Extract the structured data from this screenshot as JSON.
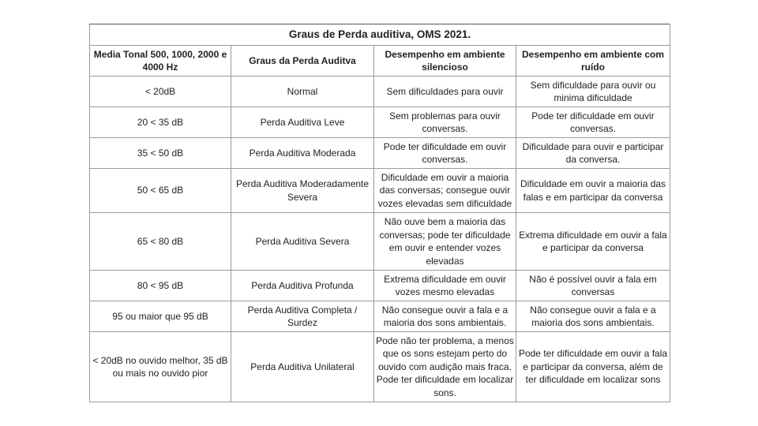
{
  "title": "Graus de Perda auditiva, OMS 2021.",
  "headers": [
    "Media Tonal 500, 1000, 2000 e 4000 Hz",
    "Graus da Perda Auditva",
    "Desempenho em ambiente silencioso",
    "Desempenho em ambiente com ruído"
  ],
  "rows": [
    [
      "< 20dB",
      "Normal",
      "Sem dificuldades para ouvir",
      "Sem dificuldade para ouvir ou minima dificuldade"
    ],
    [
      "20 < 35 dB",
      "Perda Auditiva Leve",
      "Sem problemas para ouvir conversas.",
      "Pode ter dificuldade em ouvir conversas."
    ],
    [
      "35 < 50 dB",
      "Perda Auditiva Moderada",
      "Pode ter dificuldade em ouvir conversas.",
      "Dificuldade para ouvir e participar da conversa."
    ],
    [
      "50 < 65 dB",
      "Perda Auditiva Moderadamente Severa",
      "Dificuldade em ouvir a maioria das conversas; consegue ouvir vozes elevadas sem dificuldade",
      "Dificuldade em ouvir a maioria das falas e em participar da conversa"
    ],
    [
      "65 < 80 dB",
      "Perda Auditiva Severa",
      "Não ouve bem a maioria das conversas; pode ter dificuldade em ouvir e entender vozes elevadas",
      "Extrema dificuldade em ouvir a fala e participar da conversa"
    ],
    [
      "80 < 95 dB",
      "Perda Auditiva Profunda",
      "Extrema dificuldade em ouvir vozes mesmo elevadas",
      "Não é possível ouvir a fala em conversas"
    ],
    [
      "95 ou maior que 95 dB",
      "Perda Auditiva Completa / Surdez",
      "Não consegue ouvir a fala e a maioria dos sons ambientais.",
      "Não consegue ouvir a fala e a maioria dos sons ambientais."
    ],
    [
      "< 20dB no ouvido melhor, 35 dB ou mais no ouvido pior",
      "Perda Auditiva Unilateral",
      "Pode não ter problema, a menos que os sons estejam perto do ouvido com audição mais fraca. Pode ter dificuldade em localizar sons.",
      "Pode ter dificuldade em ouvir a fala e participar da conversa, além de ter dificuldade em localizar sons"
    ]
  ]
}
